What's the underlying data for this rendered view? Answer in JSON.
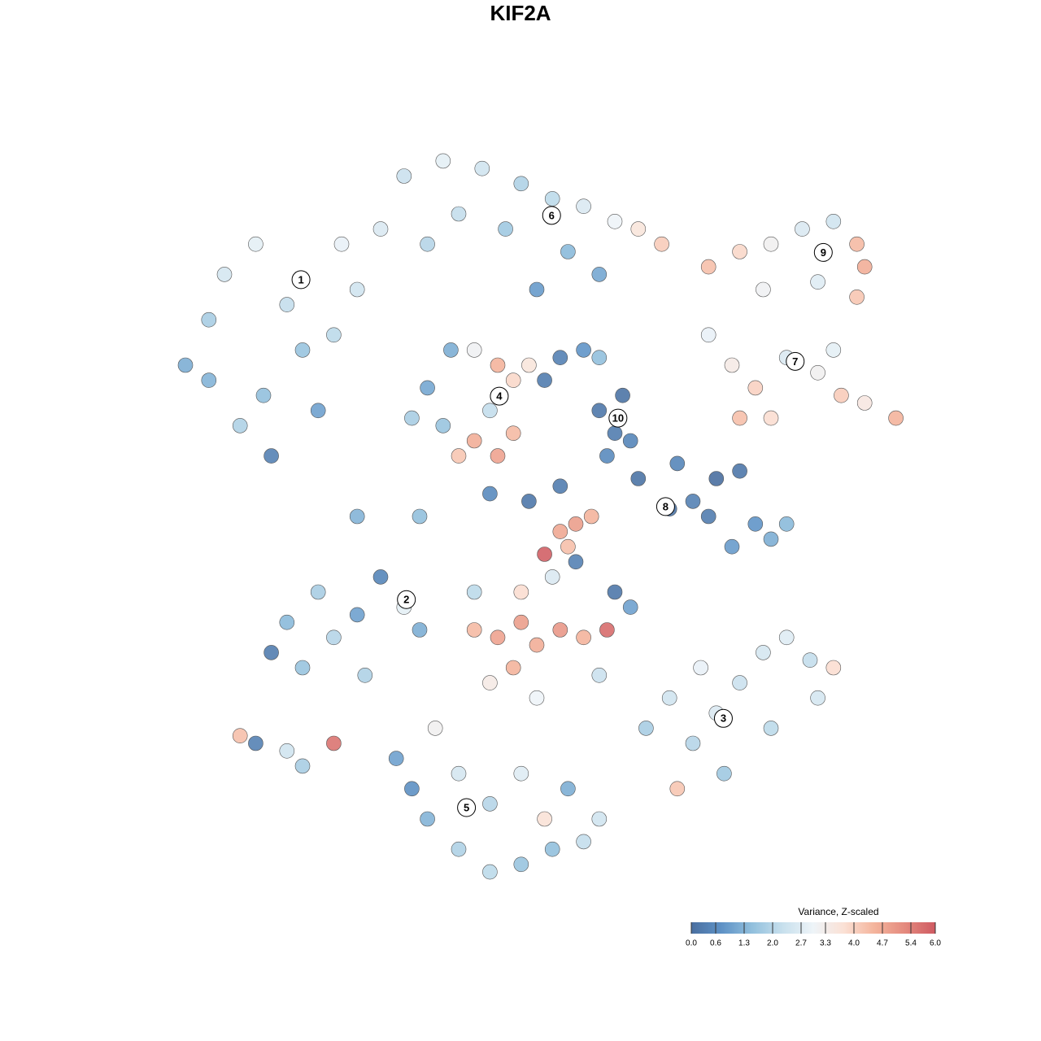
{
  "chart_data": {
    "type": "scatter",
    "title": "KIF2A",
    "xlim": [
      0,
      100
    ],
    "ylim": [
      0,
      100
    ],
    "x": [
      5,
      8,
      10,
      14,
      18,
      20,
      15,
      22,
      16,
      25,
      27,
      30,
      12,
      24,
      8,
      33,
      38,
      43,
      48,
      52,
      56,
      60,
      63,
      66,
      40,
      46,
      54,
      58,
      50,
      36,
      72,
      76,
      80,
      84,
      88,
      91,
      92,
      86,
      79,
      91,
      72,
      75,
      78,
      82,
      86,
      89,
      92,
      96,
      76,
      80,
      88,
      36,
      38,
      40,
      42,
      45,
      47,
      44,
      47,
      49,
      42,
      39,
      34,
      45,
      58,
      60,
      62,
      61,
      59,
      53,
      56,
      51,
      58,
      63,
      67,
      70,
      73,
      76,
      78,
      80,
      82,
      75,
      72,
      68,
      53,
      55,
      57,
      54,
      16,
      20,
      24,
      22,
      27,
      30,
      33,
      35,
      28,
      18,
      12,
      14,
      18,
      20,
      24,
      42,
      45,
      48,
      50,
      53,
      56,
      59,
      48,
      52,
      55,
      60,
      62,
      44,
      50,
      47,
      42,
      51,
      58,
      64,
      67,
      70,
      73,
      76,
      79,
      82,
      85,
      88,
      80,
      74,
      68,
      86,
      71,
      32,
      34,
      36,
      40,
      44,
      48,
      52,
      56,
      44,
      40,
      48,
      54,
      58,
      51,
      37,
      27,
      35,
      44,
      49,
      53
    ],
    "y": [
      70,
      76,
      82,
      86,
      78,
      72,
      66,
      64,
      58,
      86,
      80,
      88,
      62,
      74,
      68,
      95,
      97,
      96,
      94,
      92,
      91,
      89,
      88,
      86,
      90,
      88,
      85,
      82,
      80,
      86,
      83,
      85,
      86,
      88,
      89,
      86,
      83,
      81,
      80,
      79,
      74,
      70,
      67,
      71,
      69,
      66,
      65,
      63,
      63,
      63,
      72,
      67,
      62,
      58,
      60,
      58,
      61,
      64,
      68,
      70,
      72,
      72,
      63,
      70,
      64,
      61,
      60,
      66,
      58,
      71,
      72,
      68,
      71,
      55,
      51,
      52,
      55,
      56,
      49,
      47,
      49,
      46,
      50,
      57,
      48,
      49,
      50,
      46,
      32,
      30,
      34,
      40,
      37,
      42,
      38,
      35,
      29,
      36,
      21,
      20,
      19,
      17,
      20,
      35,
      34,
      36,
      33,
      35,
      34,
      35,
      40,
      42,
      44,
      40,
      38,
      28,
      26,
      30,
      40,
      45,
      29,
      22,
      26,
      20,
      24,
      28,
      32,
      34,
      31,
      30,
      22,
      16,
      14,
      26,
      30,
      18,
      14,
      10,
      6,
      3,
      4,
      6,
      7,
      12,
      16,
      16,
      14,
      10,
      10,
      22,
      50,
      50,
      53,
      52,
      54
    ],
    "values": [
      1.2,
      1.8,
      2.5,
      2.8,
      2.2,
      1.6,
      1.5,
      1.0,
      0.4,
      2.9,
      2.4,
      2.6,
      1.9,
      2.1,
      1.3,
      2.3,
      2.8,
      2.4,
      1.9,
      2.1,
      2.6,
      3.0,
      3.6,
      4.1,
      2.2,
      1.7,
      1.4,
      1.1,
      0.9,
      2.0,
      4.3,
      3.9,
      3.2,
      2.6,
      2.4,
      4.4,
      4.6,
      2.7,
      3.1,
      4.2,
      2.9,
      3.4,
      4.0,
      2.6,
      3.2,
      4.1,
      3.5,
      4.5,
      4.3,
      3.8,
      2.8,
      1.1,
      1.6,
      4.2,
      4.6,
      4.8,
      4.4,
      2.2,
      3.9,
      3.6,
      3.1,
      1.2,
      1.8,
      4.5,
      0.2,
      0.3,
      0.5,
      0.1,
      0.6,
      0.4,
      0.8,
      0.3,
      1.5,
      0.1,
      0.2,
      0.4,
      0.0,
      0.2,
      0.8,
      1.2,
      1.4,
      0.9,
      0.3,
      0.5,
      4.7,
      4.9,
      4.5,
      4.3,
      0.3,
      1.6,
      2.0,
      1.8,
      1.0,
      0.5,
      2.8,
      1.2,
      1.9,
      1.4,
      4.3,
      0.4,
      2.4,
      1.8,
      5.6,
      4.4,
      4.8,
      4.9,
      4.6,
      5.0,
      4.5,
      5.7,
      3.8,
      2.6,
      0.4,
      0.2,
      1.0,
      3.4,
      3.0,
      4.5,
      2.1,
      5.9,
      2.3,
      1.8,
      2.4,
      2.0,
      2.6,
      2.3,
      2.5,
      2.7,
      2.2,
      3.8,
      2.1,
      1.7,
      4.2,
      2.5,
      2.9,
      1.0,
      0.7,
      1.3,
      1.9,
      2.1,
      1.6,
      1.5,
      2.2,
      2.0,
      2.5,
      2.7,
      1.2,
      2.4,
      3.7,
      3.2,
      1.3,
      1.5,
      0.6,
      0.2,
      0.3
    ],
    "labels": [
      {
        "text": "1",
        "x": 19.8,
        "y": 81.3
      },
      {
        "text": "2",
        "x": 33.3,
        "y": 39.0
      },
      {
        "text": "3",
        "x": 73.9,
        "y": 23.3
      },
      {
        "text": "4",
        "x": 45.2,
        "y": 65.9
      },
      {
        "text": "5",
        "x": 41.0,
        "y": 11.5
      },
      {
        "text": "6",
        "x": 51.9,
        "y": 89.8
      },
      {
        "text": "7",
        "x": 83.1,
        "y": 70.5
      },
      {
        "text": "8",
        "x": 66.5,
        "y": 51.3
      },
      {
        "text": "9",
        "x": 86.7,
        "y": 84.9
      },
      {
        "text": "10",
        "x": 60.4,
        "y": 63.0
      }
    ],
    "legend_title": "Variance, Z-scaled",
    "clim": [
      0,
      6
    ],
    "colors": [
      "#4a6fa0",
      "#5e92c6",
      "#92c0dd",
      "#c8e0ed",
      "#eef4f8",
      "#fbe1d5",
      "#f4b49c",
      "#e48a7e",
      "#cf5a62"
    ],
    "cticks": [
      {
        "value": 0,
        "label": "0.0"
      },
      0.6,
      1.3,
      {
        "value": 2,
        "label": "2.0"
      },
      2.7,
      3.3,
      {
        "value": 4,
        "label": "4.0"
      },
      4.7,
      5.4,
      {
        "value": 6,
        "label": "6.0"
      }
    ]
  }
}
